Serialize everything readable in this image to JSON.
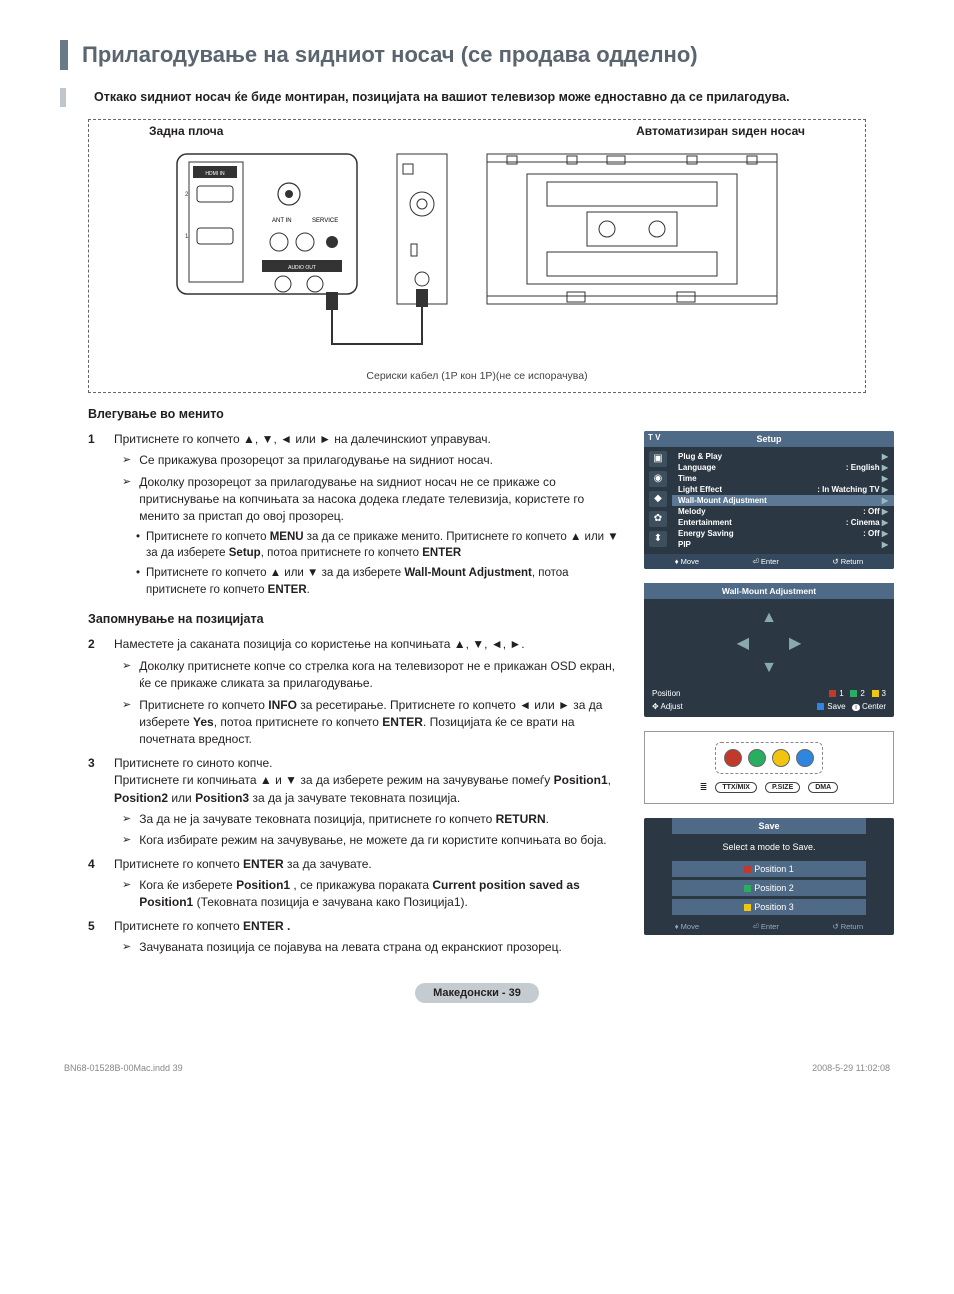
{
  "title": "Прилагодување на ѕидниот носач (се продава одделно)",
  "intro": "Откако ѕидниот носач ќе биде монтиран, позицијата на вашиот телевизор може едноставно да се прилагодува.",
  "diagram": {
    "label_left": "Задна плоча",
    "label_right": "Автоматизиран ѕиден носач",
    "cable_caption": "Сериски кабел (1P кон 1P)(не се испорачува)",
    "rear_labels": {
      "hdmi": "HDMI IN",
      "antin": "ANT IN",
      "service": "SERVICE",
      "audio": "AUDIO OUT"
    }
  },
  "section1_title": "Влегување во менито",
  "steps": [
    {
      "num": "1",
      "text": "Притиснете го копчето ▲, ▼, ◄ или ► на далечинскиот управувач.",
      "subs": [
        "Се прикажува прозорецот за прилагодување на ѕидниот носач.",
        "Доколку прозорецот за прилагодување на ѕидниот носач не се прикаже со притиснување на копчињата за насока додека гледате телевизија, користете го менито за пристап до овој прозорец."
      ],
      "bullets": [
        "Притиснете го копчето MENU за да се прикаже менито. Притиснете го копчето ▲ или ▼ за да изберете Setup, потоа притиснете го копчето ENTER",
        "Притиснете го копчето ▲ или ▼ за да изберете Wall-Mount Adjustment, потоа притиснете го копчето ENTER."
      ]
    }
  ],
  "section2_title": "Запомнување на позицијата",
  "steps2": [
    {
      "num": "2",
      "text": "Наместете ја саканата позиција со користење на копчињата ▲, ▼, ◄, ►.",
      "subs": [
        "Доколку притиснете копче со стрелка кога на телевизорот не е прикажан OSD екран, ќе се прикаже сликата за прилагодување.",
        "Притиснете го копчето INFO за ресетирање. Притиснете го копчето ◄ или ► за да изберете Yes, потоа притиснете го копчето ENTER. Позицијата ќе се врати на почетната вредност."
      ]
    },
    {
      "num": "3",
      "text": "Притиснете го синото копче.\nПритиснете ги копчињата ▲ и ▼ за да изберете режим на зачувување помеѓу Position1, Position2 или Position3 за да ја зачувате тековната позиција.",
      "subs": [
        "За да не ја зачувате тековната позиција, притиснете го копчето RETURN.",
        "Кога избирате режим на зачувување, не можете да ги користите копчињата во боја."
      ]
    },
    {
      "num": "4",
      "text": "Притиснете го копчето ENTER за да зачувате.",
      "subs": [
        "Кога ќе изберете Position1 , се прикажува пораката Current position saved as Position1 (Тековната позиција е зачувана како Позиција1)."
      ]
    },
    {
      "num": "5",
      "text": "Притиснете го копчето ENTER .",
      "subs": [
        "Зачуваната позиција се појавува на левата страна од екранскиот прозорец."
      ]
    }
  ],
  "osd_setup": {
    "tv": "T V",
    "title": "Setup",
    "items": [
      {
        "label": "Plug & Play",
        "val": ""
      },
      {
        "label": "Language",
        "val": ": English"
      },
      {
        "label": "Time",
        "val": ""
      },
      {
        "label": "Light Effect",
        "val": ": In Watching TV"
      },
      {
        "label": "Wall-Mount Adjustment",
        "val": "",
        "hl": true
      },
      {
        "label": "Melody",
        "val": ": Off"
      },
      {
        "label": "Entertainment",
        "val": ": Cinema"
      },
      {
        "label": "Energy Saving",
        "val": ": Off"
      },
      {
        "label": "PIP",
        "val": ""
      }
    ],
    "footer": {
      "move": "Move",
      "enter": "Enter",
      "return": "Return"
    }
  },
  "wma": {
    "title": "Wall-Mount Adjustment",
    "position_label": "Position",
    "adjust_label": "Adjust",
    "save_label": "Save",
    "center_label": "Center",
    "p1": "1",
    "p2": "2",
    "p3": "3",
    "colors": {
      "red": "#c0392b",
      "green": "#27ae60",
      "yellow": "#f1c40f",
      "blue": "#2e86de"
    }
  },
  "remote": {
    "colors": [
      "#c0392b",
      "#27ae60",
      "#f1c40f",
      "#2e86de"
    ],
    "btns": [
      "TTX/MIX",
      "P.SIZE",
      "DMA"
    ]
  },
  "save_panel": {
    "title": "Save",
    "msg": "Select a mode to Save.",
    "opts": [
      "Position 1",
      "Position 2",
      "Position 3"
    ],
    "footer": {
      "move": "Move",
      "enter": "Enter",
      "return": "Return"
    }
  },
  "page_badge": "Македонски - 39",
  "footer": {
    "left": "BN68-01528B-00Mac.indd   39",
    "right": "2008-5-29   11:02:08"
  }
}
